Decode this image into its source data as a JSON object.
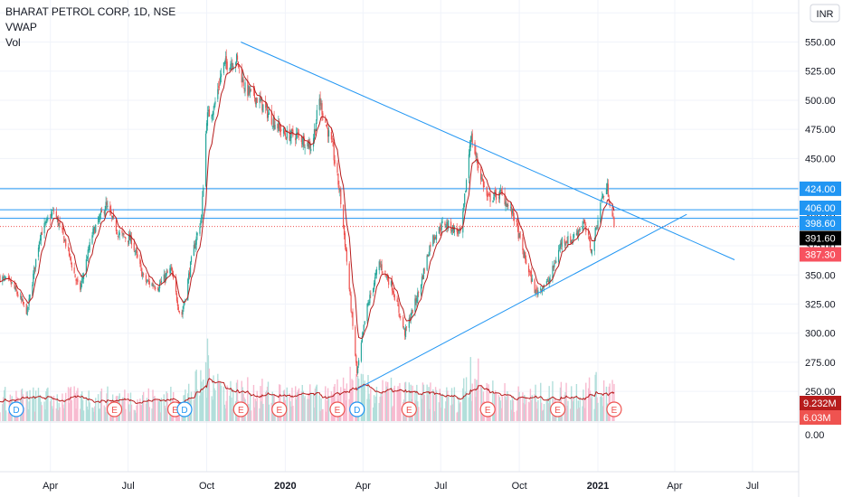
{
  "legend": {
    "title": "BHARAT PETROL CORP, 1D, NSE",
    "indicator1": "VWAP",
    "indicator2": "Vol"
  },
  "currency_button": "INR",
  "colors": {
    "up": "#26a69a",
    "down": "#ef5350",
    "vwap": "#b71c1c",
    "line": "#2196f3",
    "vol_up": "#b2dfdb",
    "vol_down": "#f8bbd0"
  },
  "chart_data": {
    "type": "candlestick",
    "x_tick_labels": [
      "Apr",
      "Jul",
      "Oct",
      "2020",
      "Apr",
      "Jul",
      "Oct",
      "2021",
      "Apr",
      "Jul"
    ],
    "y_tick_labels": [
      "250.00",
      "275.00",
      "300.00",
      "325.00",
      "350.00",
      "375.00",
      "400.00",
      "425.00",
      "450.00",
      "475.00",
      "500.00",
      "525.00",
      "550.00"
    ],
    "ylim": [
      250,
      575
    ],
    "price_keypoints": [
      [
        "2019-02-01",
        348
      ],
      [
        "2019-02-15",
        342
      ],
      [
        "2019-03-05",
        318
      ],
      [
        "2019-03-20",
        385
      ],
      [
        "2019-04-05",
        405
      ],
      [
        "2019-04-20",
        375
      ],
      [
        "2019-05-05",
        335
      ],
      [
        "2019-05-20",
        385
      ],
      [
        "2019-06-05",
        410
      ],
      [
        "2019-06-20",
        385
      ],
      [
        "2019-07-05",
        380
      ],
      [
        "2019-07-20",
        345
      ],
      [
        "2019-08-05",
        340
      ],
      [
        "2019-08-20",
        355
      ],
      [
        "2019-09-01",
        312
      ],
      [
        "2019-09-15",
        370
      ],
      [
        "2019-09-25",
        400
      ],
      [
        "2019-10-01",
        485
      ],
      [
        "2019-10-10",
        495
      ],
      [
        "2019-10-20",
        530
      ],
      [
        "2019-11-05",
        535
      ],
      [
        "2019-11-15",
        510
      ],
      [
        "2019-12-01",
        500
      ],
      [
        "2019-12-15",
        485
      ],
      [
        "2020-01-01",
        470
      ],
      [
        "2020-01-15",
        470
      ],
      [
        "2020-02-01",
        460
      ],
      [
        "2020-02-10",
        500
      ],
      [
        "2020-02-25",
        460
      ],
      [
        "2020-03-05",
        420
      ],
      [
        "2020-03-12",
        370
      ],
      [
        "2020-03-25",
        265
      ],
      [
        "2020-04-05",
        320
      ],
      [
        "2020-04-20",
        360
      ],
      [
        "2020-05-05",
        340
      ],
      [
        "2020-05-20",
        300
      ],
      [
        "2020-06-05",
        335
      ],
      [
        "2020-06-20",
        380
      ],
      [
        "2020-07-05",
        395
      ],
      [
        "2020-07-25",
        385
      ],
      [
        "2020-08-05",
        470
      ],
      [
        "2020-08-15",
        440
      ],
      [
        "2020-08-25",
        415
      ],
      [
        "2020-09-10",
        420
      ],
      [
        "2020-09-25",
        400
      ],
      [
        "2020-10-05",
        370
      ],
      [
        "2020-10-20",
        335
      ],
      [
        "2020-11-05",
        345
      ],
      [
        "2020-11-20",
        380
      ],
      [
        "2020-12-01",
        380
      ],
      [
        "2020-12-15",
        395
      ],
      [
        "2020-12-25",
        370
      ],
      [
        "2021-01-05",
        415
      ],
      [
        "2021-01-12",
        425
      ],
      [
        "2021-01-20",
        391.6
      ]
    ],
    "volume_keypoints_M": [
      [
        "2019-02-01",
        6
      ],
      [
        "2019-09-01",
        6
      ],
      [
        "2019-09-25",
        10
      ],
      [
        "2019-10-05",
        16
      ],
      [
        "2019-10-20",
        8
      ],
      [
        "2020-02-25",
        6
      ],
      [
        "2020-03-12",
        10
      ],
      [
        "2020-04-05",
        8
      ],
      [
        "2020-07-25",
        6
      ],
      [
        "2020-08-05",
        15
      ],
      [
        "2020-08-20",
        8
      ],
      [
        "2020-10-05",
        6
      ],
      [
        "2021-01-20",
        9
      ]
    ],
    "horizontal_levels": [
      424.0,
      406.0,
      398.6
    ],
    "trendlines": [
      {
        "from": [
          "2019-11-10",
          550
        ],
        "to": [
          "2021-06-10",
          363
        ]
      },
      {
        "from": [
          "2020-03-25",
          252
        ],
        "to": [
          "2021-04-15",
          402
        ]
      }
    ],
    "last_close_line": 391.6,
    "price_labels": [
      {
        "value": "424.00",
        "kind": "level"
      },
      {
        "value": "406.00",
        "kind": "level"
      },
      {
        "value": "398.60",
        "kind": "level"
      },
      {
        "value": "391.60",
        "kind": "close"
      },
      {
        "value": "387.30",
        "kind": "vwap"
      }
    ],
    "volume_labels": [
      {
        "value": "9.232M",
        "kind": "vol"
      },
      {
        "value": "6.03M",
        "kind": "volma"
      }
    ],
    "lower_axis_label": "0.00",
    "events": [
      {
        "date": "2019-02-20",
        "letter": "D"
      },
      {
        "date": "2019-06-15",
        "letter": "E"
      },
      {
        "date": "2019-08-25",
        "letter": "E"
      },
      {
        "date": "2019-09-05",
        "letter": "D"
      },
      {
        "date": "2019-11-10",
        "letter": "E"
      },
      {
        "date": "2019-12-25",
        "letter": "E"
      },
      {
        "date": "2020-03-02",
        "letter": "E"
      },
      {
        "date": "2020-03-25",
        "letter": "D"
      },
      {
        "date": "2020-05-25",
        "letter": "E"
      },
      {
        "date": "2020-08-25",
        "letter": "E"
      },
      {
        "date": "2020-11-15",
        "letter": "E"
      },
      {
        "date": "2021-01-20",
        "letter": "E"
      }
    ]
  }
}
